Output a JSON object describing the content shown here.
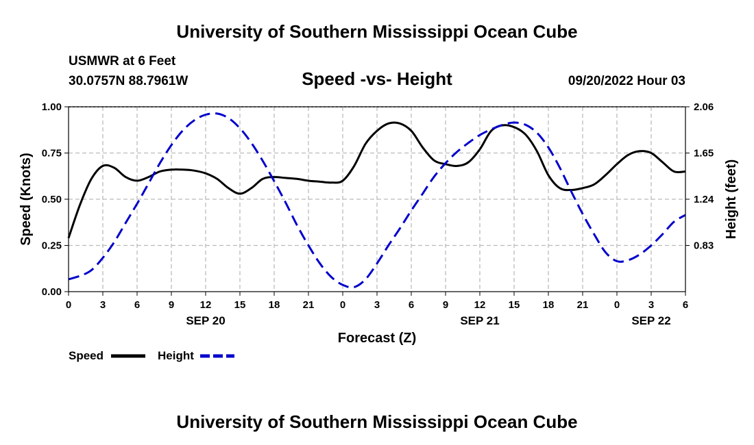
{
  "header": {
    "title": "University of Southern Mississippi Ocean Cube",
    "station": "USMWR at 6 Feet",
    "coords": "30.0757N  88.7961W",
    "subtitle": "Speed -vs- Height",
    "issued": "09/20/2022 Hour 03"
  },
  "footer": {
    "title": "University of Southern Mississippi Ocean Cube"
  },
  "colors": {
    "speed": "#000000",
    "height": "#0000cc",
    "grid": "#bbbbbb"
  },
  "chart_data": {
    "type": "line",
    "xlabel": "Forecast (Z)",
    "ylabel": "Speed (Knots)",
    "y2label": "Height (feet)",
    "x_range": [
      0,
      54
    ],
    "ylim": [
      0,
      1
    ],
    "y2lim": [
      0.42,
      2.06
    ],
    "x_ticks": [
      0,
      3,
      6,
      9,
      12,
      15,
      18,
      21,
      24,
      27,
      30,
      33,
      36,
      39,
      42,
      45,
      48,
      51,
      54
    ],
    "x_tick_labels": [
      "0",
      "3",
      "6",
      "9",
      "12",
      "15",
      "18",
      "21",
      "0",
      "3",
      "6",
      "9",
      "12",
      "15",
      "18",
      "21",
      "0",
      "3",
      "6"
    ],
    "y_ticks": [
      0,
      0.25,
      0.5,
      0.75,
      1.0
    ],
    "y_tick_labels": [
      "0.00",
      "0.25",
      "0.50",
      "0.75",
      "1.00"
    ],
    "y2_ticks": [
      0.83,
      1.24,
      1.65,
      2.06
    ],
    "y2_tick_labels": [
      "0.83",
      "1.24",
      "1.65",
      "2.06"
    ],
    "date_labels": [
      {
        "x": 12,
        "label": "SEP 20"
      },
      {
        "x": 36,
        "label": "SEP 21"
      },
      {
        "x": 51,
        "label": "SEP 22"
      }
    ],
    "grid": true,
    "legend_position": "bottom-left",
    "series": [
      {
        "name": "Speed",
        "axis": "left",
        "x": [
          0,
          1,
          2,
          3,
          4,
          5,
          6,
          7,
          8,
          9,
          10,
          11,
          12,
          13,
          14,
          15,
          16,
          17,
          18,
          19,
          20,
          21,
          22,
          23,
          24,
          25,
          26,
          27,
          28,
          29,
          30,
          31,
          32,
          33,
          34,
          35,
          36,
          37,
          38,
          39,
          40,
          41,
          42,
          43,
          44,
          45,
          46,
          47,
          48,
          49,
          50,
          51,
          52,
          53,
          54
        ],
        "values": [
          0.29,
          0.47,
          0.61,
          0.68,
          0.67,
          0.62,
          0.6,
          0.62,
          0.65,
          0.66,
          0.66,
          0.655,
          0.64,
          0.61,
          0.56,
          0.53,
          0.56,
          0.61,
          0.62,
          0.615,
          0.61,
          0.6,
          0.595,
          0.59,
          0.6,
          0.68,
          0.8,
          0.87,
          0.91,
          0.91,
          0.87,
          0.78,
          0.71,
          0.69,
          0.68,
          0.7,
          0.77,
          0.87,
          0.9,
          0.89,
          0.85,
          0.76,
          0.63,
          0.56,
          0.55,
          0.56,
          0.58,
          0.63,
          0.69,
          0.74,
          0.76,
          0.75,
          0.7,
          0.65,
          0.65
        ]
      },
      {
        "name": "Height",
        "axis": "right",
        "x": [
          0,
          1,
          2,
          3,
          4,
          5,
          6,
          7,
          8,
          9,
          10,
          11,
          12,
          13,
          14,
          15,
          16,
          17,
          18,
          19,
          20,
          21,
          22,
          23,
          24,
          25,
          26,
          27,
          28,
          29,
          30,
          31,
          32,
          33,
          34,
          35,
          36,
          37,
          38,
          39,
          40,
          41,
          42,
          43,
          44,
          45,
          46,
          47,
          48,
          49,
          50,
          51,
          52,
          53,
          54
        ],
        "values": [
          0.53,
          0.56,
          0.61,
          0.72,
          0.86,
          1.03,
          1.2,
          1.38,
          1.56,
          1.72,
          1.85,
          1.94,
          1.99,
          2.0,
          1.96,
          1.87,
          1.74,
          1.58,
          1.4,
          1.21,
          1.01,
          0.83,
          0.67,
          0.55,
          0.48,
          0.46,
          0.53,
          0.67,
          0.83,
          0.98,
          1.14,
          1.29,
          1.44,
          1.56,
          1.66,
          1.74,
          1.81,
          1.86,
          1.9,
          1.92,
          1.9,
          1.83,
          1.7,
          1.52,
          1.31,
          1.11,
          0.93,
          0.77,
          0.69,
          0.7,
          0.75,
          0.83,
          0.93,
          1.04,
          1.1
        ]
      }
    ]
  }
}
